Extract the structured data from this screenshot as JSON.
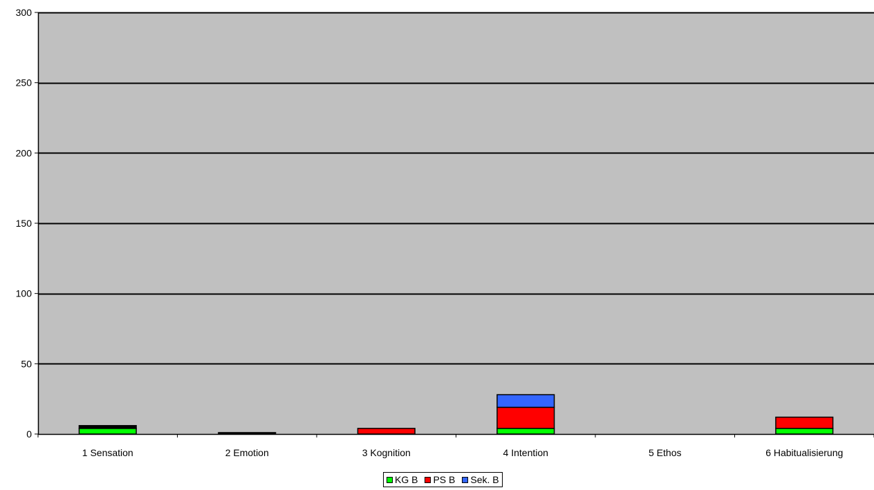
{
  "chart_data": {
    "type": "bar",
    "stacked": true,
    "title": "",
    "xlabel": "",
    "ylabel": "",
    "categories": [
      "1 Sensation",
      "2 Emotion",
      "3 Kognition",
      "4 Intention",
      "5 Ethos",
      "6 Habitualisierung"
    ],
    "series": [
      {
        "name": "KG B",
        "color": "#00ff00",
        "values": [
          4,
          0,
          0,
          4,
          0,
          4
        ]
      },
      {
        "name": "PS B",
        "color": "#ff0000",
        "values": [
          0,
          0,
          4,
          15,
          0,
          8
        ]
      },
      {
        "name": "Sek. B",
        "color": "#3366ff",
        "values": [
          0,
          0,
          0,
          9,
          0,
          0
        ]
      },
      {
        "name": "",
        "color": "#000000",
        "values": [
          2,
          1,
          0,
          0,
          0,
          0
        ]
      }
    ],
    "ylim": [
      0,
      300
    ],
    "yticks": [
      0,
      50,
      100,
      150,
      200,
      250,
      300
    ],
    "grid": true,
    "plot_background": "#c0c0c0",
    "legend_position": "bottom"
  }
}
